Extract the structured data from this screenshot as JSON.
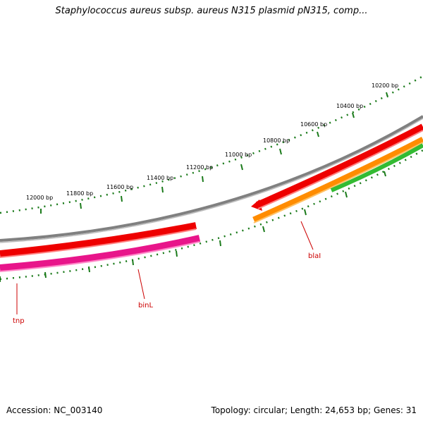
{
  "title": "Staphylococcus aureus subsp. aureus N315 plasmid pN315, comp...",
  "footer": {
    "accession": "Accession: NC_003140",
    "topology": "Topology: circular; Length: 24,653 bp; Genes: 31"
  },
  "ruler": {
    "labels": [
      "10200 bp",
      "10400 bp",
      "10600 bp",
      "10800 bp",
      "11000 bp",
      "11200 bp",
      "11400 bp",
      "11600 bp",
      "11800 bp",
      "12000 bp"
    ]
  },
  "genes": [
    {
      "name": "blaI"
    },
    {
      "name": "binL"
    },
    {
      "name": "tnp"
    }
  ],
  "colors": {
    "tick": "#1a7a1a",
    "backbone": "#808080",
    "forward": "#ee0000",
    "binL": "#e8158a",
    "blaI": "#ff8c00",
    "green_feature": "#33bb33",
    "label": "#cc0000"
  }
}
